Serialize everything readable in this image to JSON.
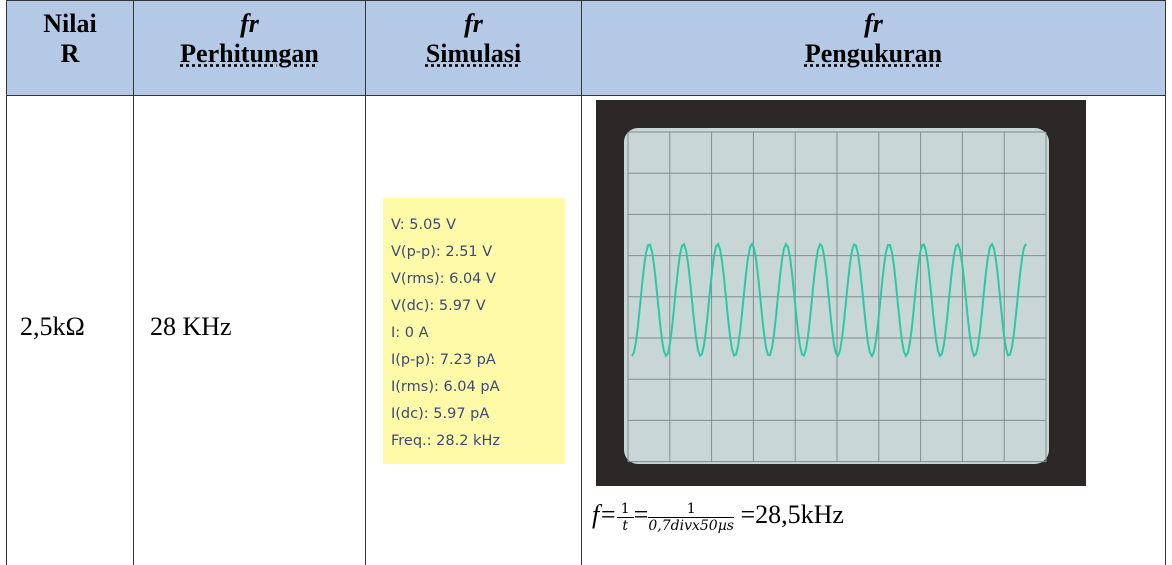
{
  "table": {
    "header": {
      "col1": [
        "Nilai",
        "R"
      ],
      "col2": {
        "symbol": "fr",
        "label": "Perhitungan"
      },
      "col3": {
        "symbol": "fr",
        "label": "Simulasi"
      },
      "col4": {
        "symbol": "fr",
        "label": "Pengukuran"
      }
    },
    "row": {
      "resistance": "2,5kΩ",
      "calculated": "28 KHz",
      "simulation": [
        "V: 5.05 V",
        "V(p-p): 2.51 V",
        "V(rms): 6.04 V",
        "V(dc): 5.97 V",
        "I: 0 A",
        "I(p-p): 7.23 pA",
        "I(rms): 6.04 pA",
        "I(dc): 5.97 pA",
        "Freq.: 28.2 kHz"
      ],
      "formula": {
        "lhs": "f=",
        "num1": "1",
        "den1": "t",
        "eq": "=",
        "num2": "1",
        "den2": "0,7divx50µs",
        "result": "=28,5kHz"
      }
    }
  }
}
